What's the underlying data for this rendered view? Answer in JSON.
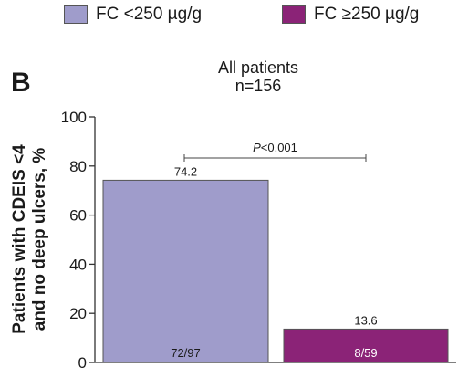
{
  "legend": [
    {
      "label": "FC <250 µg/g",
      "color": "#9f9ccb"
    },
    {
      "label": "FC ≥250 µg/g",
      "color": "#8b2377"
    }
  ],
  "panel_label": "B",
  "chart_data": {
    "type": "bar",
    "title": "All patients",
    "subtitle": "n=156",
    "ylabel_line1": "Patients with CDEIS <4",
    "ylabel_line2": "and no deep ulcers, %",
    "ylim": [
      0,
      100
    ],
    "yticks": [
      0,
      20,
      40,
      60,
      80,
      100
    ],
    "categories": [
      "FC <250 µg/g",
      "FC ≥250 µg/g"
    ],
    "values": [
      74.2,
      13.6
    ],
    "value_labels": [
      "74.2",
      "13.6"
    ],
    "inner_labels": [
      "72/97",
      "8/59"
    ],
    "colors": [
      "#9f9ccb",
      "#8b2377"
    ],
    "significance": "P<0.001",
    "significance_italic": "P",
    "significance_rest": "<0.001"
  }
}
